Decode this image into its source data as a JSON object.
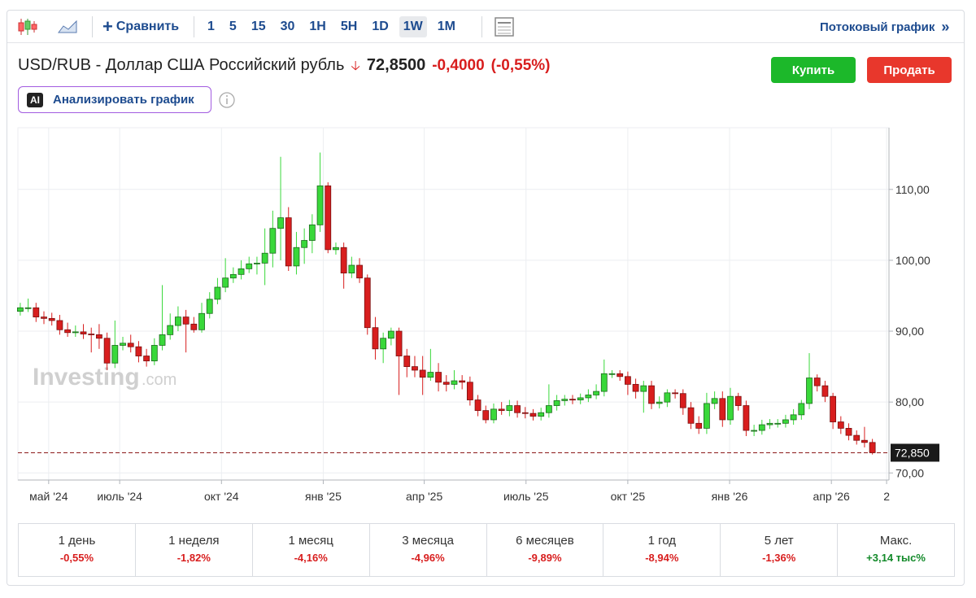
{
  "toolbar": {
    "compare": "Сравнить",
    "timeframes": [
      "1",
      "5",
      "15",
      "30",
      "1H",
      "5H",
      "1D",
      "1W",
      "1M"
    ],
    "stream": "Потоковый график",
    "stream_arrow": "»"
  },
  "header": {
    "name": "USD/RUB - Доллар США Российский рубль",
    "price": "72,8500",
    "change": "-0,4000",
    "change_pct": "(-0,55%)"
  },
  "buttons": {
    "buy": "Купить",
    "sell": "Продать"
  },
  "ai": {
    "badge": "AI",
    "label": "Анализировать график"
  },
  "watermark": {
    "brand": "Investing",
    "domain": ".com"
  },
  "chart_data": {
    "type": "candlestick",
    "open": [
      92.8,
      93.3,
      93.3,
      92.0,
      91.8,
      91.5,
      90.2,
      89.8,
      89.9,
      89.6,
      89.5,
      89.0,
      85.5,
      88.0,
      88.3,
      87.8,
      86.5,
      85.8,
      88.0,
      89.5,
      90.8,
      92.0,
      91.0,
      90.2,
      92.5,
      94.5,
      96.2,
      97.5,
      98.0,
      98.8,
      99.5,
      99.6,
      101.0,
      104.5,
      106.0,
      99.2,
      101.8,
      102.8,
      105.0,
      110.5,
      101.5,
      101.8,
      98.2,
      99.3,
      97.5,
      90.5,
      87.5,
      89.0,
      90.0,
      86.5,
      85.0,
      84.5,
      83.5,
      84.2,
      82.8,
      82.5,
      83.0,
      82.8,
      80.3,
      78.8,
      77.5,
      79.0,
      78.8,
      79.5,
      78.5,
      78.4,
      78.0,
      78.5,
      79.5,
      80.2,
      80.4,
      80.3,
      80.6,
      81.0,
      81.5,
      84.0,
      84.0,
      83.6,
      82.5,
      81.5,
      82.3,
      79.8,
      80.0,
      81.3,
      81.2,
      79.2,
      77.0,
      76.3,
      79.8,
      80.5,
      77.5,
      80.8,
      79.5,
      76.0,
      76.0,
      76.8,
      77.0,
      77.0,
      77.5,
      78.2,
      79.8,
      83.4,
      82.3,
      80.8,
      77.2,
      76.3,
      75.3,
      74.6,
      74.3
    ],
    "high": [
      94.0,
      94.6,
      94.0,
      92.8,
      92.6,
      92.3,
      91.2,
      90.8,
      91.0,
      90.5,
      91.0,
      89.8,
      91.5,
      89.2,
      89.5,
      88.6,
      87.5,
      89.0,
      96.5,
      92.5,
      93.5,
      93.0,
      92.0,
      94.0,
      95.5,
      97.5,
      100.3,
      99.0,
      100.0,
      100.5,
      100.5,
      104.5,
      107.0,
      114.6,
      107.5,
      104.0,
      104.5,
      106.5,
      115.2,
      111.0,
      102.5,
      102.5,
      100.5,
      100.3,
      98.0,
      92.0,
      89.8,
      90.5,
      90.5,
      87.5,
      86.5,
      86.5,
      87.5,
      85.5,
      83.8,
      84.5,
      83.8,
      83.6,
      81.0,
      79.5,
      79.8,
      80.0,
      80.3,
      80.2,
      79.3,
      79.0,
      79.2,
      82.5,
      81.0,
      81.0,
      81.0,
      81.2,
      81.8,
      82.5,
      86.0,
      84.5,
      84.5,
      84.3,
      83.3,
      83.0,
      83.0,
      80.8,
      81.8,
      81.8,
      81.8,
      80.0,
      78.0,
      81.3,
      81.5,
      81.5,
      82.0,
      81.3,
      80.2,
      76.8,
      77.5,
      77.6,
      77.6,
      78.2,
      79.0,
      80.3,
      86.9,
      83.9,
      83.0,
      81.3,
      78.0,
      77.0,
      76.0,
      76.5,
      74.8
    ],
    "low": [
      92.2,
      92.7,
      91.3,
      91.0,
      90.8,
      89.5,
      89.2,
      89.2,
      88.9,
      87.0,
      87.5,
      84.5,
      84.8,
      87.3,
      87.0,
      85.6,
      85.0,
      85.2,
      87.3,
      88.8,
      90.0,
      87.0,
      89.8,
      89.8,
      91.8,
      93.8,
      95.5,
      96.8,
      97.3,
      98.2,
      98.0,
      96.5,
      99.0,
      100.0,
      98.5,
      98.0,
      99.5,
      101.0,
      104.0,
      101.0,
      100.8,
      96.0,
      97.5,
      96.8,
      89.5,
      86.0,
      85.5,
      88.0,
      81.0,
      83.5,
      83.5,
      81.0,
      83.0,
      81.5,
      81.5,
      81.8,
      81.8,
      79.5,
      78.0,
      77.0,
      77.0,
      78.2,
      78.0,
      77.8,
      77.7,
      77.4,
      77.4,
      77.8,
      78.8,
      79.5,
      79.7,
      79.7,
      80.0,
      80.4,
      80.8,
      83.4,
      83.0,
      81.0,
      80.5,
      78.5,
      79.0,
      79.1,
      79.3,
      80.5,
      78.2,
      76.2,
      75.5,
      75.5,
      79.0,
      76.5,
      76.8,
      78.8,
      75.2,
      75.2,
      75.4,
      76.2,
      76.4,
      76.4,
      76.8,
      77.5,
      79.0,
      81.5,
      80.0,
      76.2,
      75.5,
      74.6,
      74.0,
      73.6,
      72.6
    ],
    "close": [
      93.3,
      93.3,
      92.0,
      91.8,
      91.5,
      90.2,
      89.8,
      89.9,
      89.6,
      89.5,
      89.0,
      85.5,
      88.0,
      88.3,
      87.8,
      86.5,
      85.8,
      88.0,
      89.5,
      90.8,
      92.0,
      91.0,
      90.2,
      92.5,
      94.5,
      96.2,
      97.5,
      98.0,
      98.8,
      99.5,
      99.6,
      101.0,
      104.5,
      106.0,
      99.2,
      101.8,
      102.8,
      105.0,
      110.5,
      101.5,
      101.8,
      98.2,
      99.3,
      97.5,
      90.5,
      87.5,
      89.0,
      90.0,
      86.5,
      85.0,
      84.5,
      83.5,
      84.2,
      82.8,
      82.5,
      83.0,
      82.8,
      80.3,
      78.8,
      77.5,
      79.0,
      78.8,
      79.5,
      78.5,
      78.4,
      78.0,
      78.5,
      79.5,
      80.2,
      80.4,
      80.3,
      80.6,
      81.0,
      81.5,
      84.0,
      84.0,
      83.6,
      82.5,
      81.5,
      82.3,
      79.8,
      80.0,
      81.3,
      81.2,
      79.2,
      77.0,
      76.3,
      79.8,
      80.5,
      77.5,
      80.8,
      79.5,
      76.0,
      76.0,
      76.8,
      77.0,
      77.0,
      77.5,
      78.2,
      79.8,
      83.4,
      82.3,
      80.8,
      77.2,
      76.3,
      75.3,
      74.6,
      74.3,
      72.85
    ],
    "up_color": "#39d83a",
    "down_color": "#d81e1e",
    "xlim": [
      -0.3,
      110.1
    ],
    "xticks": [
      {
        "value": 3.6,
        "label": "май '24"
      },
      {
        "value": 12.6,
        "label": "июль '24"
      },
      {
        "value": 25.5,
        "label": "окт '24"
      },
      {
        "value": 38.4,
        "label": "янв '25"
      },
      {
        "value": 51.2,
        "label": "апр '25"
      },
      {
        "value": 64.1,
        "label": "июль '25"
      },
      {
        "value": 77.0,
        "label": "окт '25"
      },
      {
        "value": 89.9,
        "label": "янв '26"
      },
      {
        "value": 102.8,
        "label": "апр '26"
      },
      {
        "value": 109.8,
        "label": "2"
      }
    ],
    "ylim": [
      69,
      118.7
    ],
    "yticks": [
      {
        "value": 70,
        "label": "70,00"
      },
      {
        "value": 80,
        "label": "80,00"
      },
      {
        "value": 90,
        "label": "90,00"
      },
      {
        "value": 100,
        "label": "100,00"
      },
      {
        "value": 110,
        "label": "110,00"
      }
    ],
    "last_price": {
      "value": 72.85,
      "label": "72,850"
    },
    "grid": true
  },
  "performance": [
    {
      "period": "1 день",
      "change": "-0,55%"
    },
    {
      "period": "1 неделя",
      "change": "-1,82%"
    },
    {
      "period": "1 месяц",
      "change": "-4,16%"
    },
    {
      "period": "3 месяца",
      "change": "-4,96%"
    },
    {
      "period": "6 месяцев",
      "change": "-9,89%"
    },
    {
      "period": "1 год",
      "change": "-8,94%"
    },
    {
      "period": "5 лет",
      "change": "-1,36%"
    },
    {
      "period": "Макс.",
      "change": "+3,14 тыс%"
    }
  ]
}
